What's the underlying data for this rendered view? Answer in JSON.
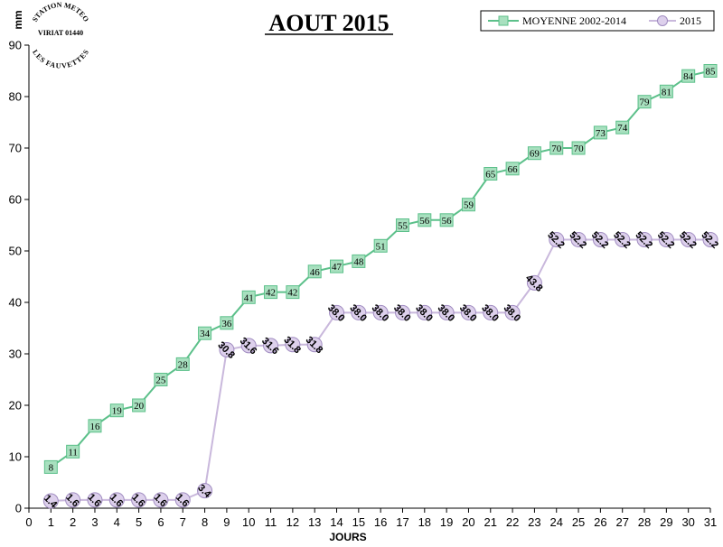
{
  "logo": {
    "top_text": "STATION METEO",
    "middle_text": "VIRIAT 01440",
    "bottom_text": "LES FAUVETTES"
  },
  "chart_data": {
    "type": "line",
    "title": "AOUT 2015",
    "xlabel": "JOURS",
    "ylabel": "mm",
    "xlim": [
      0,
      31
    ],
    "ylim": [
      0,
      90
    ],
    "xticks": [
      0,
      1,
      2,
      3,
      4,
      5,
      6,
      7,
      8,
      9,
      10,
      11,
      12,
      13,
      14,
      15,
      16,
      17,
      18,
      19,
      20,
      21,
      22,
      23,
      24,
      25,
      26,
      27,
      28,
      29,
      30,
      31
    ],
    "yticks": [
      0,
      10,
      20,
      30,
      40,
      50,
      60,
      70,
      80,
      90
    ],
    "grid": false,
    "legend": "top-right",
    "x": [
      1,
      2,
      3,
      4,
      5,
      6,
      7,
      8,
      9,
      10,
      11,
      12,
      13,
      14,
      15,
      16,
      17,
      18,
      19,
      20,
      21,
      22,
      23,
      24,
      25,
      26,
      27,
      28,
      29,
      30,
      31
    ],
    "series": [
      {
        "name": "MOYENNE 2002-2014",
        "color": "#5cc08a",
        "fill": "#a8e0bf",
        "marker": "square",
        "values": [
          8,
          11,
          16,
          19,
          20,
          25,
          28,
          34,
          36,
          41,
          42,
          42,
          46,
          47,
          48,
          51,
          55,
          56,
          56,
          59,
          65,
          66,
          69,
          70,
          70,
          73,
          74,
          79,
          81,
          84,
          85
        ],
        "labels": [
          "8",
          "11",
          "16",
          "19",
          "20",
          "25",
          "28",
          "34",
          "36",
          "41",
          "42",
          "42",
          "46",
          "47",
          "48",
          "51",
          "55",
          "56",
          "56",
          "59",
          "65",
          "66",
          "69",
          "70",
          "70",
          "73",
          "74",
          "79",
          "81",
          "84",
          "85"
        ]
      },
      {
        "name": "2015",
        "color": "#c9b8dc",
        "fill": "#ddd0ec",
        "marker": "circle",
        "values": [
          1.4,
          1.6,
          1.6,
          1.6,
          1.6,
          1.6,
          1.6,
          3.4,
          30.8,
          31.6,
          31.6,
          31.8,
          31.8,
          38.0,
          38.0,
          38.0,
          38.0,
          38.0,
          38.0,
          38.0,
          38.0,
          38.0,
          43.8,
          52.2,
          52.2,
          52.2,
          52.2,
          52.2,
          52.2,
          52.2,
          52.2
        ],
        "labels": [
          "1.4",
          "1.6",
          "1.6",
          "1.6",
          "1.6",
          "1.6",
          "1.6",
          "3.4",
          "30.8",
          "31.6",
          "31.6",
          "31.8",
          "31.8",
          "38.0",
          "38.0",
          "38.0",
          "38.0",
          "38.0",
          "38.0",
          "38.0",
          "38.0",
          "38.0",
          "43.8",
          "52.2",
          "52.2",
          "52.2",
          "52.2",
          "52.2",
          "52.2",
          "52.2",
          "52.2"
        ]
      }
    ]
  }
}
